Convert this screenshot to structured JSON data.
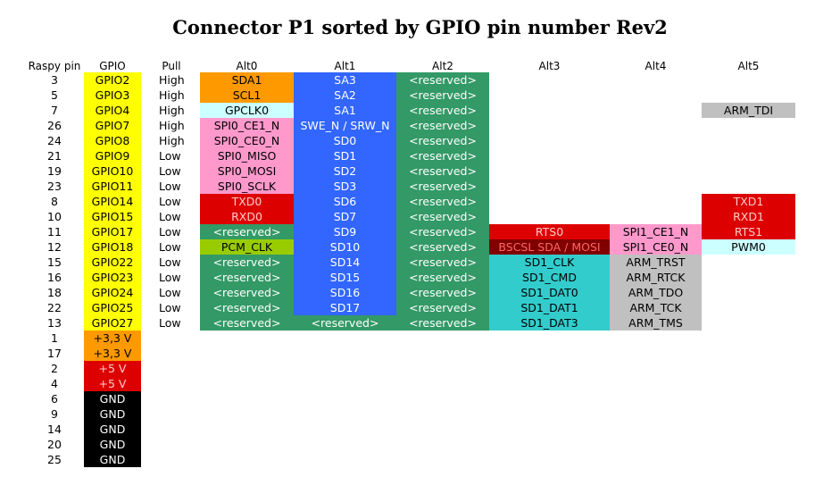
{
  "title": "Connector P1 sorted by GPIO pin number Rev2",
  "headers": {
    "raspy_pin": "Raspy pin",
    "gpio": "GPIO",
    "pull": "Pull",
    "alt0": "Alt0",
    "alt1": "Alt1",
    "alt2": "Alt2",
    "alt3": "Alt3",
    "alt4": "Alt4",
    "alt5": "Alt5"
  },
  "colors": {
    "gpio": "#ffff00",
    "alt1_blue": "#3366ff",
    "reserved_green": "#339966",
    "spi_pink": "#ff99cc",
    "i2c_orange": "#ff9900",
    "clk_cyan": "#ccffff",
    "uart_red": "#dd0000",
    "pcm_lime": "#99cc00",
    "sd_teal": "#33cccc",
    "arm_gray": "#c0c0c0",
    "bsc_darkred": "#800000",
    "power_orange": "#ff9900",
    "power_red": "#dd0000",
    "ground_black": "#000000"
  },
  "rows": [
    {
      "pin": "3",
      "gpio": "GPIO2",
      "pull": "High",
      "alt0": "SDA1",
      "alt1": "SA3",
      "alt2": "<reserved>",
      "alt3": "",
      "alt4": "",
      "alt5": ""
    },
    {
      "pin": "5",
      "gpio": "GPIO3",
      "pull": "High",
      "alt0": "SCL1",
      "alt1": "SA2",
      "alt2": "<reserved>",
      "alt3": "",
      "alt4": "",
      "alt5": ""
    },
    {
      "pin": "7",
      "gpio": "GPIO4",
      "pull": "High",
      "alt0": "GPCLK0",
      "alt1": "SA1",
      "alt2": "<reserved>",
      "alt3": "",
      "alt4": "",
      "alt5": "ARM_TDI"
    },
    {
      "pin": "26",
      "gpio": "GPIO7",
      "pull": "High",
      "alt0": "SPI0_CE1_N",
      "alt1": "SWE_N / SRW_N",
      "alt2": "<reserved>",
      "alt3": "",
      "alt4": "",
      "alt5": ""
    },
    {
      "pin": "24",
      "gpio": "GPIO8",
      "pull": "High",
      "alt0": "SPI0_CE0_N",
      "alt1": "SD0",
      "alt2": "<reserved>",
      "alt3": "",
      "alt4": "",
      "alt5": ""
    },
    {
      "pin": "21",
      "gpio": "GPIO9",
      "pull": "Low",
      "alt0": "SPI0_MISO",
      "alt1": "SD1",
      "alt2": "<reserved>",
      "alt3": "",
      "alt4": "",
      "alt5": ""
    },
    {
      "pin": "19",
      "gpio": "GPIO10",
      "pull": "Low",
      "alt0": "SPI0_MOSI",
      "alt1": "SD2",
      "alt2": "<reserved>",
      "alt3": "",
      "alt4": "",
      "alt5": ""
    },
    {
      "pin": "23",
      "gpio": "GPIO11",
      "pull": "Low",
      "alt0": "SPI0_SCLK",
      "alt1": "SD3",
      "alt2": "<reserved>",
      "alt3": "",
      "alt4": "",
      "alt5": ""
    },
    {
      "pin": "8",
      "gpio": "GPIO14",
      "pull": "Low",
      "alt0": "TXD0",
      "alt1": "SD6",
      "alt2": "<reserved>",
      "alt3": "",
      "alt4": "",
      "alt5": "TXD1"
    },
    {
      "pin": "10",
      "gpio": "GPIO15",
      "pull": "Low",
      "alt0": "RXD0",
      "alt1": "SD7",
      "alt2": "<reserved>",
      "alt3": "",
      "alt4": "",
      "alt5": "RXD1"
    },
    {
      "pin": "11",
      "gpio": "GPIO17",
      "pull": "Low",
      "alt0": "<reserved>",
      "alt1": "SD9",
      "alt2": "<reserved>",
      "alt3": "RTS0",
      "alt4": "SPI1_CE1_N",
      "alt5": "RTS1"
    },
    {
      "pin": "12",
      "gpio": "GPIO18",
      "pull": "Low",
      "alt0": "PCM_CLK",
      "alt1": "SD10",
      "alt2": "<reserved>",
      "alt3": "BSCSL SDA / MOSI",
      "alt4": "SPI1_CE0_N",
      "alt5": "PWM0"
    },
    {
      "pin": "15",
      "gpio": "GPIO22",
      "pull": "Low",
      "alt0": "<reserved>",
      "alt1": "SD14",
      "alt2": "<reserved>",
      "alt3": "SD1_CLK",
      "alt4": "ARM_TRST",
      "alt5": ""
    },
    {
      "pin": "16",
      "gpio": "GPIO23",
      "pull": "Low",
      "alt0": "<reserved>",
      "alt1": "SD15",
      "alt2": "<reserved>",
      "alt3": "SD1_CMD",
      "alt4": "ARM_RTCK",
      "alt5": ""
    },
    {
      "pin": "18",
      "gpio": "GPIO24",
      "pull": "Low",
      "alt0": "<reserved>",
      "alt1": "SD16",
      "alt2": "<reserved>",
      "alt3": "SD1_DAT0",
      "alt4": "ARM_TDO",
      "alt5": ""
    },
    {
      "pin": "22",
      "gpio": "GPIO25",
      "pull": "Low",
      "alt0": "<reserved>",
      "alt1": "SD17",
      "alt2": "<reserved>",
      "alt3": "SD1_DAT1",
      "alt4": "ARM_TCK",
      "alt5": ""
    },
    {
      "pin": "13",
      "gpio": "GPIO27",
      "pull": "Low",
      "alt0": "<reserved>",
      "alt1": "<reserved>",
      "alt2": "<reserved>",
      "alt3": "SD1_DAT3",
      "alt4": "ARM_TMS",
      "alt5": ""
    },
    {
      "pin": "1",
      "gpio": "+3,3 V",
      "pull": "",
      "alt0": "",
      "alt1": "",
      "alt2": "",
      "alt3": "",
      "alt4": "",
      "alt5": ""
    },
    {
      "pin": "17",
      "gpio": "+3,3 V",
      "pull": "",
      "alt0": "",
      "alt1": "",
      "alt2": "",
      "alt3": "",
      "alt4": "",
      "alt5": ""
    },
    {
      "pin": "2",
      "gpio": "+5 V",
      "pull": "",
      "alt0": "",
      "alt1": "",
      "alt2": "",
      "alt3": "",
      "alt4": "",
      "alt5": ""
    },
    {
      "pin": "4",
      "gpio": "+5 V",
      "pull": "",
      "alt0": "",
      "alt1": "",
      "alt2": "",
      "alt3": "",
      "alt4": "",
      "alt5": ""
    },
    {
      "pin": "6",
      "gpio": "GND",
      "pull": "",
      "alt0": "",
      "alt1": "",
      "alt2": "",
      "alt3": "",
      "alt4": "",
      "alt5": ""
    },
    {
      "pin": "9",
      "gpio": "GND",
      "pull": "",
      "alt0": "",
      "alt1": "",
      "alt2": "",
      "alt3": "",
      "alt4": "",
      "alt5": ""
    },
    {
      "pin": "14",
      "gpio": "GND",
      "pull": "",
      "alt0": "",
      "alt1": "",
      "alt2": "",
      "alt3": "",
      "alt4": "",
      "alt5": ""
    },
    {
      "pin": "20",
      "gpio": "GND",
      "pull": "",
      "alt0": "",
      "alt1": "",
      "alt2": "",
      "alt3": "",
      "alt4": "",
      "alt5": ""
    },
    {
      "pin": "25",
      "gpio": "GND",
      "pull": "",
      "alt0": "",
      "alt1": "",
      "alt2": "",
      "alt3": "",
      "alt4": "",
      "alt5": ""
    }
  ]
}
